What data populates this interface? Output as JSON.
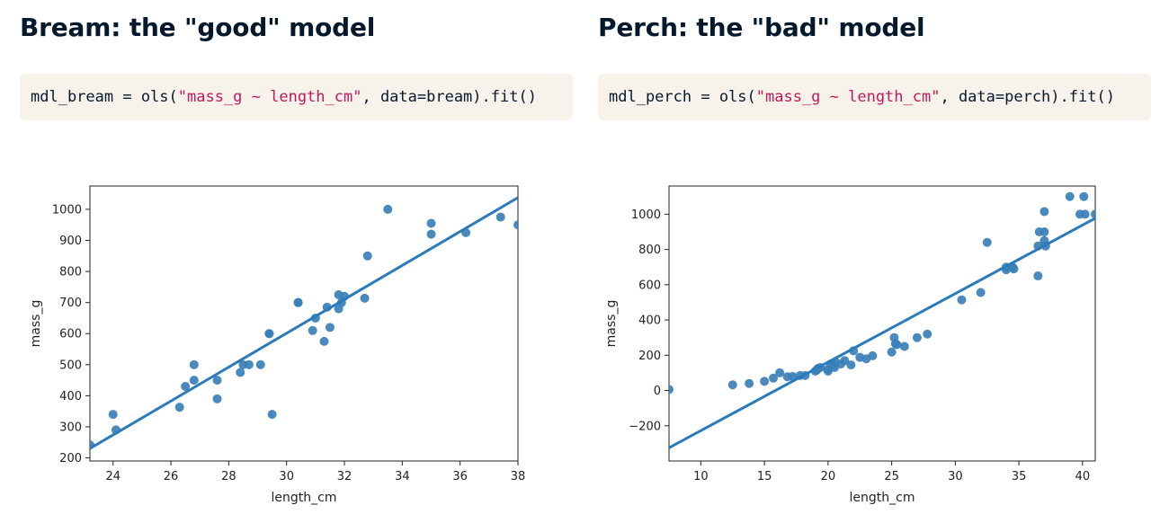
{
  "panels": [
    {
      "title": "Bream: the \"good\" model",
      "code": {
        "prefix": "mdl_bream = ols(",
        "string": "\"mass_g ~ length_cm\"",
        "suffix": ", data=bream).fit()"
      }
    },
    {
      "title": "Perch: the \"bad\" model",
      "code": {
        "prefix": "mdl_perch = ols(",
        "string": "\"mass_g ~ length_cm\"",
        "suffix": ", data=perch).fit()"
      }
    }
  ],
  "colors": {
    "points": "#3a7fb8",
    "line": "#2b7bba",
    "code_bg": "#f7f3eb",
    "string": "#c2185b"
  },
  "chart_data": [
    {
      "type": "scatter",
      "title": "",
      "xlabel": "length_cm",
      "ylabel": "mass_g",
      "xlim": [
        23.2,
        38.0
      ],
      "ylim": [
        190,
        1075
      ],
      "xticks": [
        24,
        26,
        28,
        30,
        32,
        34,
        36,
        38
      ],
      "yticks": [
        200,
        300,
        400,
        500,
        600,
        700,
        800,
        900,
        1000
      ],
      "grid": false,
      "regression_line": {
        "slope": 54.55,
        "intercept": -1035.3
      },
      "points": [
        [
          23.2,
          242
        ],
        [
          24.0,
          340
        ],
        [
          24.1,
          290
        ],
        [
          26.3,
          363
        ],
        [
          26.5,
          430
        ],
        [
          26.8,
          450
        ],
        [
          26.8,
          500
        ],
        [
          27.6,
          390
        ],
        [
          27.6,
          450
        ],
        [
          28.4,
          475
        ],
        [
          28.5,
          500
        ],
        [
          28.7,
          500
        ],
        [
          29.1,
          500
        ],
        [
          29.4,
          600
        ],
        [
          29.4,
          600
        ],
        [
          29.5,
          340
        ],
        [
          30.4,
          700
        ],
        [
          30.4,
          700
        ],
        [
          30.9,
          610
        ],
        [
          31.0,
          650
        ],
        [
          31.3,
          575
        ],
        [
          31.4,
          685
        ],
        [
          31.5,
          620
        ],
        [
          31.8,
          680
        ],
        [
          31.8,
          725
        ],
        [
          31.9,
          700
        ],
        [
          32.0,
          720
        ],
        [
          32.7,
          714
        ],
        [
          32.8,
          850
        ],
        [
          33.5,
          1000
        ],
        [
          35.0,
          920
        ],
        [
          35.0,
          955
        ],
        [
          36.2,
          925
        ],
        [
          37.4,
          975
        ],
        [
          38.0,
          950
        ]
      ]
    },
    {
      "type": "scatter",
      "title": "",
      "xlabel": "length_cm",
      "ylabel": "mass_g",
      "xlim": [
        7.5,
        41.0
      ],
      "ylim": [
        -400,
        1160
      ],
      "xticks": [
        10,
        15,
        20,
        25,
        30,
        35,
        40
      ],
      "yticks": [
        -200,
        0,
        200,
        400,
        600,
        800,
        1000
      ],
      "grid": false,
      "regression_line": {
        "slope": 38.87,
        "intercept": -616.5
      },
      "points": [
        [
          7.5,
          6
        ],
        [
          12.5,
          32
        ],
        [
          13.8,
          40
        ],
        [
          15.0,
          52
        ],
        [
          15.7,
          70
        ],
        [
          16.2,
          100
        ],
        [
          16.8,
          78
        ],
        [
          17.2,
          80
        ],
        [
          17.8,
          85
        ],
        [
          18.2,
          85
        ],
        [
          19.0,
          110
        ],
        [
          19.1,
          115
        ],
        [
          19.2,
          125
        ],
        [
          19.4,
          130
        ],
        [
          20.0,
          110
        ],
        [
          20.0,
          120
        ],
        [
          20.2,
          150
        ],
        [
          20.4,
          145
        ],
        [
          20.5,
          130
        ],
        [
          20.6,
          160
        ],
        [
          21.0,
          150
        ],
        [
          21.3,
          170
        ],
        [
          21.8,
          145
        ],
        [
          22.0,
          225
        ],
        [
          22.5,
          188
        ],
        [
          23.0,
          180
        ],
        [
          23.5,
          197
        ],
        [
          25.0,
          218
        ],
        [
          25.2,
          300
        ],
        [
          25.3,
          265
        ],
        [
          25.4,
          260
        ],
        [
          26.0,
          250
        ],
        [
          27.0,
          300
        ],
        [
          27.8,
          320
        ],
        [
          30.5,
          514
        ],
        [
          32.0,
          556
        ],
        [
          32.5,
          840
        ],
        [
          34.0,
          685
        ],
        [
          34.0,
          700
        ],
        [
          34.5,
          700
        ],
        [
          34.6,
          690
        ],
        [
          36.5,
          650
        ],
        [
          36.5,
          820
        ],
        [
          36.6,
          900
        ],
        [
          37.0,
          850
        ],
        [
          37.0,
          900
        ],
        [
          37.0,
          1015
        ],
        [
          37.1,
          820
        ],
        [
          39.0,
          1100
        ],
        [
          39.8,
          1000
        ],
        [
          40.1,
          1100
        ],
        [
          40.2,
          1000
        ],
        [
          41.0,
          1000
        ]
      ]
    }
  ]
}
